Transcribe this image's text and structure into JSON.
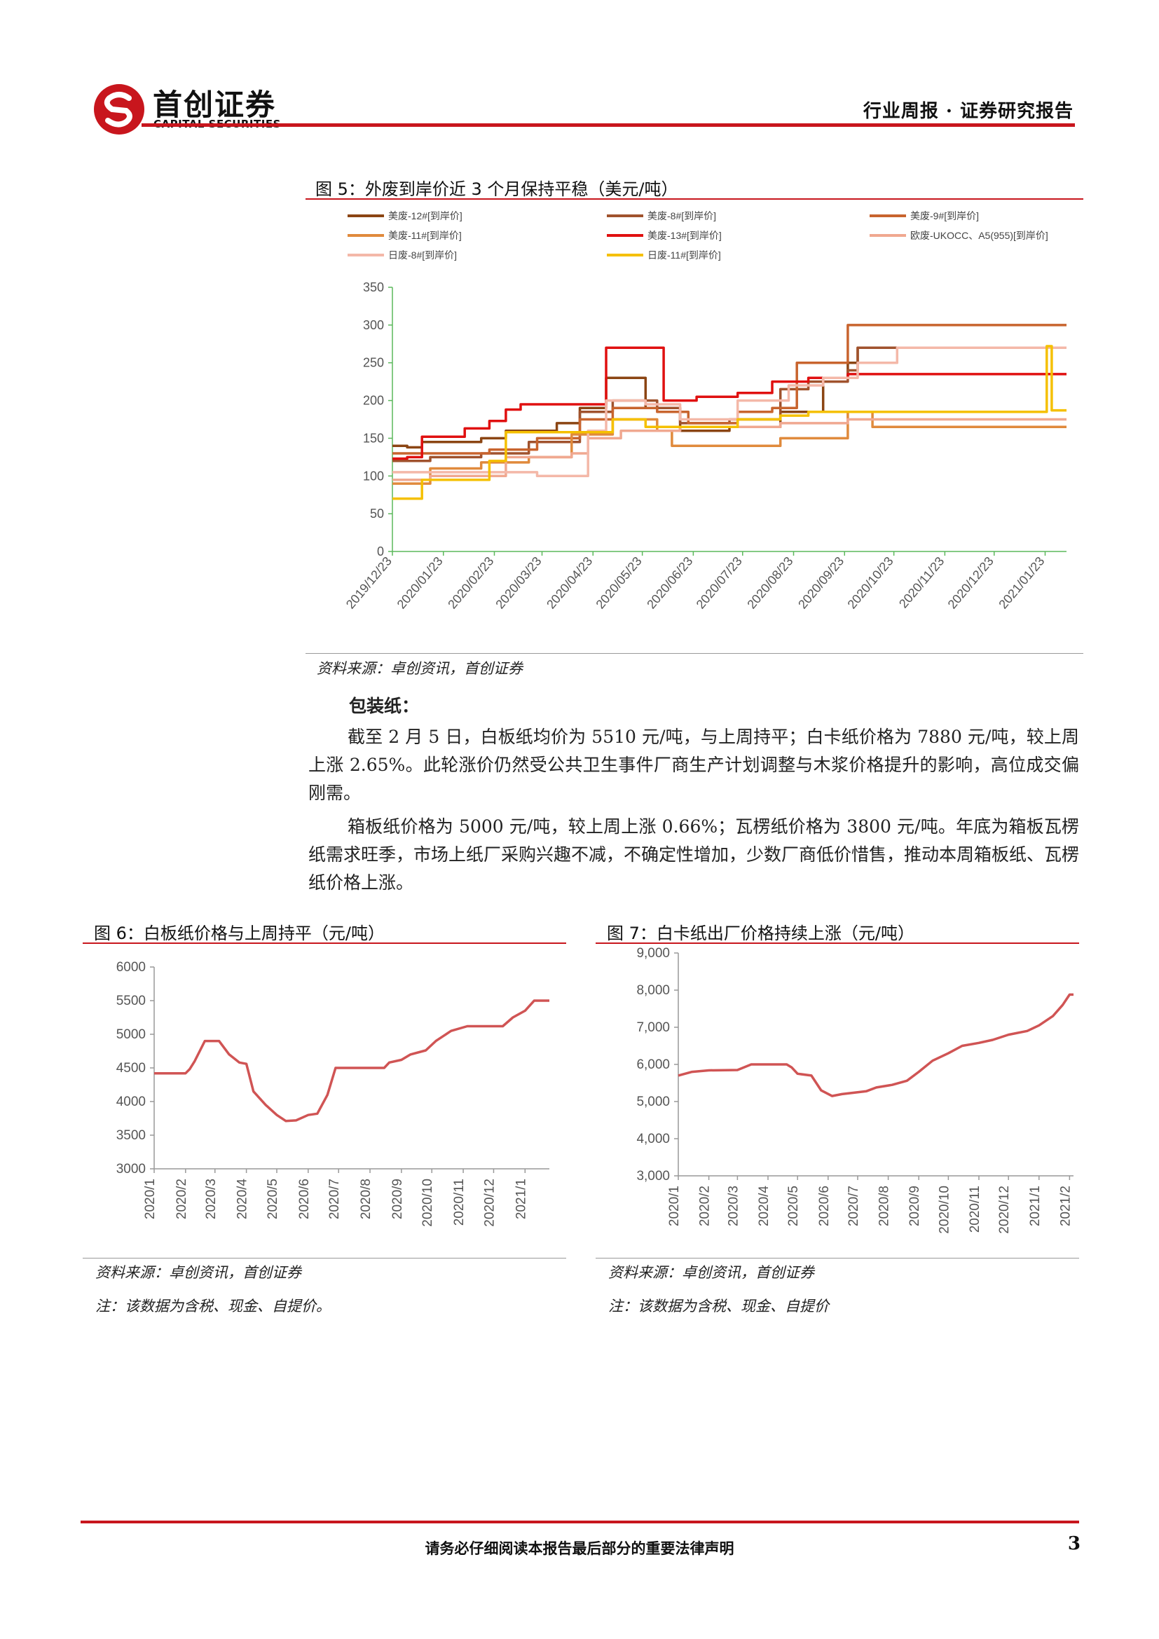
{
  "header": {
    "logo_cn": "首创证券",
    "logo_en": "CAPITAL SECURITIES",
    "report_type": "行业周报 · 证券研究报告",
    "brand_color": "#c8161d"
  },
  "figure5": {
    "caption": "图 5：外废到岸价近 3 个月保持平稳（美元/吨）",
    "source": "资料来源：卓创资讯，首创证券"
  },
  "section": {
    "title": "包装纸：",
    "p1": "截至 2 月 5 日，白板纸均价为 5510 元/吨，与上周持平；白卡纸价格为 7880 元/吨，较上周上涨 2.65%。此轮涨价仍然受公共卫生事件厂商生产计划调整与木浆价格提升的影响，高位成交偏刚需。",
    "p2": "箱板纸价格为 5000 元/吨，较上周上涨 0.66%；瓦楞纸价格为 3800 元/吨。年底为箱板瓦楞纸需求旺季，市场上纸厂采购兴趣不减，不确定性增加，少数厂商低价惜售，推动本周箱板纸、瓦楞纸价格上涨。"
  },
  "figure6": {
    "caption": "图 6：白板纸价格与上周持平（元/吨）",
    "source": "资料来源：卓创资讯，首创证券",
    "note": "注：该数据为含税、现金、自提价。"
  },
  "figure7": {
    "caption": "图 7：白卡纸出厂价格持续上涨（元/吨）",
    "source": "资料来源：卓创资讯，首创证券",
    "note": "注：该数据为含税、现金、自提价"
  },
  "footer": {
    "disclaimer": "请务必仔细阅读本报告最后部分的重要法律声明",
    "page": "3"
  },
  "chart_data": [
    {
      "type": "line",
      "x_type": "date",
      "xlim": [
        "2019-12-23",
        "2021-02-05"
      ],
      "x_ticks": [
        "2019/12/23",
        "2020/01/23",
        "2020/02/23",
        "2020/03/23",
        "2020/04/23",
        "2020/05/23",
        "2020/06/23",
        "2020/07/23",
        "2020/08/23",
        "2020/09/23",
        "2020/10/23",
        "2020/11/23",
        "2020/12/23",
        "2021/01/23"
      ],
      "ylim": [
        0,
        350
      ],
      "y_ticks": [
        0,
        50,
        100,
        150,
        200,
        250,
        300,
        350
      ],
      "grid": false,
      "legend": "top",
      "series": [
        {
          "name": "美废-12#[到岸价]",
          "color": "#8b4513",
          "points": [
            [
              "2019-12-23",
              140
            ],
            [
              "2020-01-01",
              138
            ],
            [
              "2020-01-10",
              145
            ],
            [
              "2020-02-15",
              150
            ],
            [
              "2020-03-01",
              160
            ],
            [
              "2020-04-01",
              170
            ],
            [
              "2020-04-15",
              190
            ],
            [
              "2020-05-01",
              230
            ],
            [
              "2020-05-25",
              190
            ],
            [
              "2020-06-15",
              160
            ],
            [
              "2020-07-15",
              165
            ],
            [
              "2020-08-15",
              185
            ],
            [
              "2020-09-10",
              230
            ],
            [
              "2020-09-25",
              250
            ],
            [
              "2020-10-01",
              270
            ],
            [
              "2021-02-05",
              270
            ]
          ]
        },
        {
          "name": "美废-8#[到岸价]",
          "color": "#a0522d",
          "points": [
            [
              "2019-12-23",
              120
            ],
            [
              "2020-01-15",
              125
            ],
            [
              "2020-02-15",
              130
            ],
            [
              "2020-03-15",
              145
            ],
            [
              "2020-04-15",
              185
            ],
            [
              "2020-05-05",
              200
            ],
            [
              "2020-06-01",
              190
            ],
            [
              "2020-06-15",
              170
            ],
            [
              "2020-07-15",
              175
            ],
            [
              "2020-08-15",
              215
            ],
            [
              "2020-09-01",
              225
            ],
            [
              "2020-09-25",
              240
            ],
            [
              "2020-10-01",
              270
            ],
            [
              "2021-02-05",
              270
            ]
          ]
        },
        {
          "name": "美废-9#[到岸价]",
          "color": "#c8642e",
          "points": [
            [
              "2019-12-23",
              130
            ],
            [
              "2020-01-15",
              130
            ],
            [
              "2020-02-20",
              135
            ],
            [
              "2020-03-20",
              150
            ],
            [
              "2020-04-15",
              175
            ],
            [
              "2020-05-05",
              190
            ],
            [
              "2020-06-01",
              185
            ],
            [
              "2020-06-20",
              170
            ],
            [
              "2020-07-20",
              185
            ],
            [
              "2020-08-10",
              190
            ],
            [
              "2020-08-25",
              250
            ],
            [
              "2020-09-25",
              300
            ],
            [
              "2021-02-05",
              300
            ]
          ]
        },
        {
          "name": "美废-11#[到岸价]",
          "color": "#e08a3c",
          "points": [
            [
              "2019-12-23",
              90
            ],
            [
              "2020-01-15",
              110
            ],
            [
              "2020-02-15",
              118
            ],
            [
              "2020-03-15",
              125
            ],
            [
              "2020-04-10",
              155
            ],
            [
              "2020-05-05",
              175
            ],
            [
              "2020-06-01",
              160
            ],
            [
              "2020-06-10",
              140
            ],
            [
              "2020-07-01",
              140
            ],
            [
              "2020-08-15",
              150
            ],
            [
              "2020-09-25",
              185
            ],
            [
              "2020-10-10",
              165
            ],
            [
              "2021-02-05",
              165
            ]
          ]
        },
        {
          "name": "美废-13#[到岸价]",
          "color": "#e01010",
          "points": [
            [
              "2019-12-23",
              123
            ],
            [
              "2020-01-01",
              125
            ],
            [
              "2020-01-10",
              152
            ],
            [
              "2020-02-05",
              163
            ],
            [
              "2020-02-20",
              173
            ],
            [
              "2020-03-01",
              188
            ],
            [
              "2020-03-10",
              195
            ],
            [
              "2020-04-25",
              195
            ],
            [
              "2020-05-01",
              270
            ],
            [
              "2020-06-01",
              270
            ],
            [
              "2020-06-05",
              200
            ],
            [
              "2020-06-25",
              205
            ],
            [
              "2020-07-20",
              210
            ],
            [
              "2020-08-10",
              225
            ],
            [
              "2020-09-01",
              230
            ],
            [
              "2020-09-25",
              235
            ],
            [
              "2021-02-05",
              235
            ]
          ]
        },
        {
          "name": "欧废-UKOCC、A5(955)[到岸价]",
          "color": "#f0a890",
          "points": [
            [
              "2019-12-23",
              95
            ],
            [
              "2020-01-15",
              100
            ],
            [
              "2020-03-01",
              125
            ],
            [
              "2020-04-10",
              130
            ],
            [
              "2020-04-20",
              150
            ],
            [
              "2020-05-10",
              160
            ],
            [
              "2020-06-15",
              165
            ],
            [
              "2020-08-15",
              170
            ],
            [
              "2020-09-25",
              175
            ],
            [
              "2021-02-05",
              175
            ]
          ]
        },
        {
          "name": "日废-8#[到岸价]",
          "color": "#f4b8a8",
          "points": [
            [
              "2019-12-23",
              105
            ],
            [
              "2020-02-15",
              105
            ],
            [
              "2020-03-20",
              100
            ],
            [
              "2020-04-20",
              160
            ],
            [
              "2020-05-01",
              200
            ],
            [
              "2020-05-25",
              195
            ],
            [
              "2020-06-15",
              175
            ],
            [
              "2020-07-20",
              200
            ],
            [
              "2020-08-20",
              220
            ],
            [
              "2020-09-10",
              230
            ],
            [
              "2020-10-01",
              250
            ],
            [
              "2020-10-25",
              270
            ],
            [
              "2021-02-05",
              270
            ]
          ]
        },
        {
          "name": "日废-11#[到岸价]",
          "color": "#f5c000",
          "points": [
            [
              "2019-12-23",
              70
            ],
            [
              "2020-01-10",
              95
            ],
            [
              "2020-02-20",
              120
            ],
            [
              "2020-03-01",
              158
            ],
            [
              "2020-04-20",
              158
            ],
            [
              "2020-05-05",
              175
            ],
            [
              "2020-05-25",
              165
            ],
            [
              "2020-07-01",
              165
            ],
            [
              "2020-07-20",
              175
            ],
            [
              "2020-08-15",
              180
            ],
            [
              "2020-09-01",
              185
            ],
            [
              "2021-01-20",
              185
            ],
            [
              "2021-01-24",
              272
            ],
            [
              "2021-01-27",
              187
            ],
            [
              "2021-02-05",
              187
            ]
          ]
        }
      ]
    },
    {
      "type": "line",
      "x_type": "date",
      "xlim": [
        "2020-01-01",
        "2021-01-25"
      ],
      "x_ticks": [
        "2020/1",
        "2020/2",
        "2020/3",
        "2020/4",
        "2020/5",
        "2020/6",
        "2020/7",
        "2020/8",
        "2020/9",
        "2020/10",
        "2020/11",
        "2020/12",
        "2021/1"
      ],
      "ylim": [
        3000,
        6000
      ],
      "y_ticks": [
        3000,
        3500,
        4000,
        4500,
        5000,
        5500,
        6000
      ],
      "grid": false,
      "legend": "none",
      "series": [
        {
          "color": "#d05454",
          "points": [
            [
              "2020-01-01",
              4420
            ],
            [
              "2020-02-01",
              4420
            ],
            [
              "2020-02-05",
              4480
            ],
            [
              "2020-02-10",
              4600
            ],
            [
              "2020-02-20",
              4900
            ],
            [
              "2020-03-05",
              4900
            ],
            [
              "2020-03-15",
              4700
            ],
            [
              "2020-03-25",
              4580
            ],
            [
              "2020-04-01",
              4560
            ],
            [
              "2020-04-08",
              4150
            ],
            [
              "2020-04-20",
              3950
            ],
            [
              "2020-05-01",
              3800
            ],
            [
              "2020-05-10",
              3710
            ],
            [
              "2020-05-20",
              3720
            ],
            [
              "2020-06-01",
              3800
            ],
            [
              "2020-06-10",
              3820
            ],
            [
              "2020-06-20",
              4100
            ],
            [
              "2020-06-28",
              4500
            ],
            [
              "2020-07-10",
              4500
            ],
            [
              "2020-08-15",
              4500
            ],
            [
              "2020-08-20",
              4580
            ],
            [
              "2020-09-01",
              4620
            ],
            [
              "2020-09-10",
              4700
            ],
            [
              "2020-09-25",
              4760
            ],
            [
              "2020-10-05",
              4900
            ],
            [
              "2020-10-20",
              5050
            ],
            [
              "2020-11-05",
              5120
            ],
            [
              "2020-12-10",
              5120
            ],
            [
              "2020-12-20",
              5250
            ],
            [
              "2021-01-01",
              5350
            ],
            [
              "2021-01-10",
              5500
            ],
            [
              "2021-01-25",
              5500
            ]
          ]
        }
      ]
    },
    {
      "type": "line",
      "x_type": "date",
      "xlim": [
        "2020-01-01",
        "2021-02-05"
      ],
      "x_ticks": [
        "2020/1",
        "2020/2",
        "2020/3",
        "2020/4",
        "2020/5",
        "2020/6",
        "2020/7",
        "2020/8",
        "2020/9",
        "2020/10",
        "2020/11",
        "2020/12",
        "2021/1",
        "2021/2"
      ],
      "ylim": [
        3000,
        9000
      ],
      "y_ticks": [
        "3,000",
        "4,000",
        "5,000",
        "6,000",
        "7,000",
        "8,000",
        "9,000"
      ],
      "grid": false,
      "legend": "none",
      "series": [
        {
          "color": "#d05454",
          "points": [
            [
              "2020-01-01",
              5700
            ],
            [
              "2020-01-15",
              5800
            ],
            [
              "2020-02-01",
              5840
            ],
            [
              "2020-03-01",
              5850
            ],
            [
              "2020-03-15",
              6000
            ],
            [
              "2020-04-20",
              6000
            ],
            [
              "2020-04-25",
              5920
            ],
            [
              "2020-05-01",
              5750
            ],
            [
              "2020-05-15",
              5700
            ],
            [
              "2020-05-25",
              5300
            ],
            [
              "2020-06-05",
              5150
            ],
            [
              "2020-06-15",
              5200
            ],
            [
              "2020-07-10",
              5280
            ],
            [
              "2020-07-20",
              5380
            ],
            [
              "2020-08-05",
              5450
            ],
            [
              "2020-08-20",
              5560
            ],
            [
              "2020-09-01",
              5800
            ],
            [
              "2020-09-15",
              6100
            ],
            [
              "2020-10-01",
              6300
            ],
            [
              "2020-10-15",
              6500
            ],
            [
              "2020-11-01",
              6580
            ],
            [
              "2020-11-15",
              6660
            ],
            [
              "2020-12-01",
              6800
            ],
            [
              "2020-12-20",
              6900
            ],
            [
              "2021-01-01",
              7050
            ],
            [
              "2021-01-15",
              7300
            ],
            [
              "2021-01-25",
              7600
            ],
            [
              "2021-02-01",
              7880
            ],
            [
              "2021-02-05",
              7880
            ]
          ]
        }
      ]
    }
  ]
}
